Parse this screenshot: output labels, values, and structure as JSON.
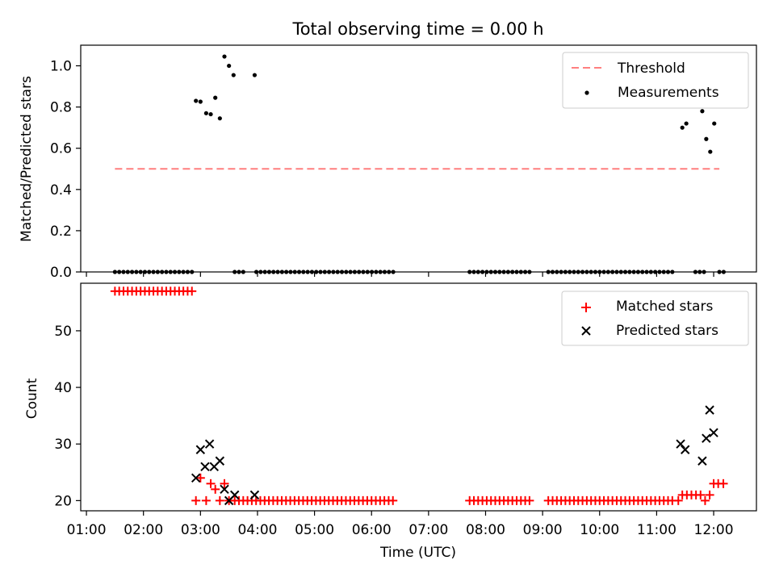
{
  "chart_data": {
    "title": "Total observing time = 0.00 h",
    "xlabel": "Time (UTC)",
    "xlim_hours": [
      0.9,
      12.75
    ],
    "x_ticks": [
      {
        "h": 1,
        "label": "01:00"
      },
      {
        "h": 2,
        "label": "02:00"
      },
      {
        "h": 3,
        "label": "03:00"
      },
      {
        "h": 4,
        "label": "04:00"
      },
      {
        "h": 5,
        "label": "05:00"
      },
      {
        "h": 6,
        "label": "06:00"
      },
      {
        "h": 7,
        "label": "07:00"
      },
      {
        "h": 8,
        "label": "08:00"
      },
      {
        "h": 9,
        "label": "09:00"
      },
      {
        "h": 10,
        "label": "10:00"
      },
      {
        "h": 11,
        "label": "11:00"
      },
      {
        "h": 12,
        "label": "12:00"
      }
    ],
    "panels": [
      {
        "type": "scatter",
        "ylabel": "Matched/Predicted stars",
        "ylim": [
          0,
          1.1
        ],
        "y_ticks": [
          {
            "v": 0,
            "label": "0.0"
          },
          {
            "v": 0.2,
            "label": "0.2"
          },
          {
            "v": 0.4,
            "label": "0.4"
          },
          {
            "v": 0.6,
            "label": "0.6"
          },
          {
            "v": 0.8,
            "label": "0.8"
          },
          {
            "v": 1.0,
            "label": "1.0"
          }
        ],
        "legend": {
          "placement": "upper right"
        },
        "threshold": {
          "name": "Threshold",
          "value": 0.5,
          "x_range": [
            1.5,
            12.1
          ],
          "color": "#ff7f7f"
        },
        "measurements": {
          "name": "Measurements",
          "color": "#000000",
          "zero_ranges": [
            [
              1.5,
              2.85,
              0.075
            ],
            [
              3.6,
              3.75,
              0.075
            ],
            [
              3.98,
              6.35,
              0.075
            ],
            [
              7.72,
              8.8,
              0.075
            ],
            [
              9.1,
              11.3,
              0.075
            ],
            [
              11.68,
              11.8,
              0.075
            ],
            [
              12.1,
              12.2,
              0.075
            ]
          ],
          "points": [
            [
              2.92,
              0.83
            ],
            [
              3.0,
              0.826
            ],
            [
              3.1,
              0.77
            ],
            [
              3.18,
              0.765
            ],
            [
              3.26,
              0.845
            ],
            [
              3.34,
              0.745
            ],
            [
              3.42,
              1.045
            ],
            [
              3.5,
              1.0
            ],
            [
              3.58,
              0.955
            ],
            [
              3.95,
              0.955
            ],
            [
              11.45,
              0.7
            ],
            [
              11.52,
              0.72
            ],
            [
              11.8,
              0.78
            ],
            [
              11.87,
              0.645
            ],
            [
              11.94,
              0.583
            ],
            [
              12.01,
              0.72
            ]
          ]
        }
      },
      {
        "type": "scatter",
        "ylabel": "Count",
        "ylim": [
          18.2,
          58.4
        ],
        "y_ticks": [
          {
            "v": 20,
            "label": "20"
          },
          {
            "v": 30,
            "label": "30"
          },
          {
            "v": 40,
            "label": "40"
          },
          {
            "v": 50,
            "label": "50"
          }
        ],
        "legend": {
          "placement": "upper right"
        },
        "matched": {
          "name": "Matched stars",
          "color": "#ff0000",
          "ranges": [
            [
              1.5,
              2.85,
              0.075,
              57
            ],
            [
              3.6,
              6.35,
              0.075,
              20
            ],
            [
              7.72,
              8.8,
              0.075,
              20
            ],
            [
              9.1,
              11.3,
              0.075,
              20
            ]
          ],
          "points": [
            [
              2.92,
              20
            ],
            [
              3.0,
              24
            ],
            [
              3.1,
              20
            ],
            [
              3.18,
              23
            ],
            [
              3.26,
              22
            ],
            [
              3.34,
              20
            ],
            [
              3.42,
              23
            ],
            [
              3.5,
              20
            ],
            [
              11.38,
              20
            ],
            [
              11.45,
              21
            ],
            [
              11.53,
              21
            ],
            [
              11.61,
              21
            ],
            [
              11.69,
              21
            ],
            [
              11.77,
              21
            ],
            [
              11.85,
              20
            ],
            [
              11.93,
              21
            ],
            [
              12.0,
              23
            ],
            [
              12.08,
              23
            ],
            [
              12.17,
              23
            ]
          ]
        },
        "predicted": {
          "name": "Predicted stars",
          "color": "#000000",
          "points": [
            [
              2.92,
              24
            ],
            [
              3.0,
              29
            ],
            [
              3.08,
              26
            ],
            [
              3.16,
              30
            ],
            [
              3.24,
              26
            ],
            [
              3.34,
              27
            ],
            [
              3.42,
              22
            ],
            [
              3.5,
              20
            ],
            [
              3.6,
              21
            ],
            [
              3.95,
              21
            ],
            [
              11.42,
              30
            ],
            [
              11.5,
              29
            ],
            [
              11.8,
              27
            ],
            [
              11.87,
              31
            ],
            [
              11.93,
              36
            ],
            [
              12.0,
              32
            ]
          ]
        }
      }
    ]
  }
}
